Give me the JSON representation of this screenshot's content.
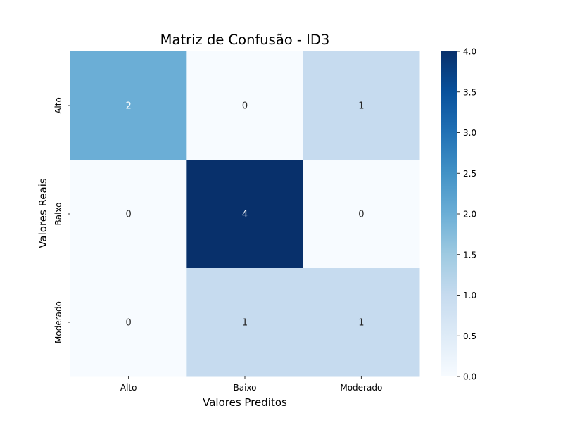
{
  "chart_data": {
    "type": "heatmap",
    "title": "Matriz de Confusão - ID3",
    "xlabel": "Valores Preditos",
    "ylabel": "Valores Reais",
    "x_categories": [
      "Alto",
      "Baixo",
      "Moderado"
    ],
    "y_categories": [
      "Alto",
      "Baixo",
      "Moderado"
    ],
    "values": [
      [
        2,
        0,
        1
      ],
      [
        0,
        4,
        0
      ],
      [
        0,
        1,
        1
      ]
    ],
    "colormap": "Blues",
    "vmin": 0,
    "vmax": 4,
    "colorbar_ticks": [
      "0.0",
      "0.5",
      "1.0",
      "1.5",
      "2.0",
      "2.5",
      "3.0",
      "3.5",
      "4.0"
    ],
    "annotated": true
  }
}
